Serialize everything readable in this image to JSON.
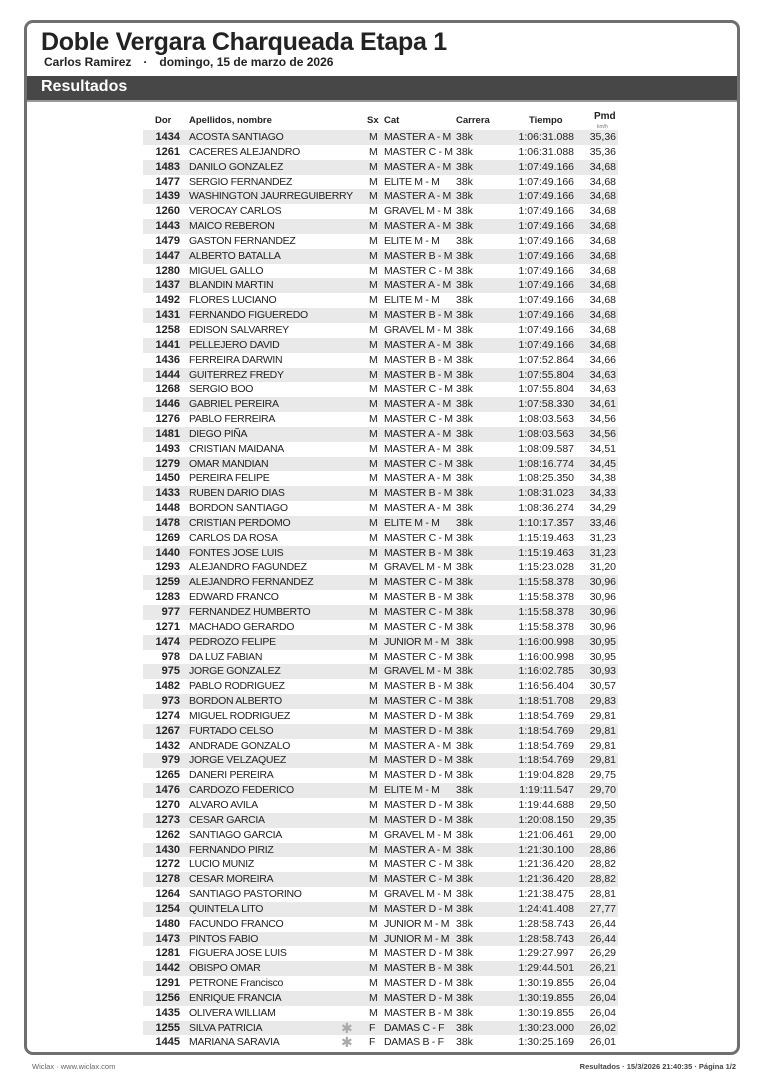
{
  "header": {
    "title": "Doble Vergara Charqueada Etapa 1",
    "organizer": "Carlos Ramirez",
    "separator": "·",
    "date": "domingo, 15 de marzo de 2026"
  },
  "section": {
    "title": "Resultados"
  },
  "table": {
    "columns": {
      "dor": "Dor",
      "name": "Apellidos, nombre",
      "sx": "Sx",
      "cat": "Cat",
      "carrera": "Carrera",
      "tiempo": "Tiempo",
      "pmd": "Pmd",
      "pmd_unit": "km/h"
    },
    "rows": [
      [
        "1434",
        "ACOSTA SANTIAGO",
        "M",
        "MASTER A - M",
        "38k",
        "1:06:31.088",
        "35,36",
        ""
      ],
      [
        "1261",
        "CACERES ALEJANDRO",
        "M",
        "MASTER C - M",
        "38k",
        "1:06:31.088",
        "35,36",
        ""
      ],
      [
        "1483",
        "DANILO GONZALEZ",
        "M",
        "MASTER A - M",
        "38k",
        "1:07:49.166",
        "34,68",
        ""
      ],
      [
        "1477",
        "SERGIO FERNANDEZ",
        "M",
        "ELITE M - M",
        "38k",
        "1:07:49.166",
        "34,68",
        ""
      ],
      [
        "1439",
        "WASHINGTON JAURREGUIBERRY",
        "M",
        "MASTER A - M",
        "38k",
        "1:07:49.166",
        "34,68",
        ""
      ],
      [
        "1260",
        "VEROCAY CARLOS",
        "M",
        "GRAVEL M - M",
        "38k",
        "1:07:49.166",
        "34,68",
        ""
      ],
      [
        "1443",
        "MAICO REBERON",
        "M",
        "MASTER A - M",
        "38k",
        "1:07:49.166",
        "34,68",
        ""
      ],
      [
        "1479",
        "GASTON FERNANDEZ",
        "M",
        "ELITE M - M",
        "38k",
        "1:07:49.166",
        "34,68",
        ""
      ],
      [
        "1447",
        "ALBERTO BATALLA",
        "M",
        "MASTER B - M",
        "38k",
        "1:07:49.166",
        "34,68",
        ""
      ],
      [
        "1280",
        "MIGUEL GALLO",
        "M",
        "MASTER C - M",
        "38k",
        "1:07:49.166",
        "34,68",
        ""
      ],
      [
        "1437",
        "BLANDIN MARTIN",
        "M",
        "MASTER A - M",
        "38k",
        "1:07:49.166",
        "34,68",
        ""
      ],
      [
        "1492",
        "FLORES LUCIANO",
        "M",
        "ELITE M - M",
        "38k",
        "1:07:49.166",
        "34,68",
        ""
      ],
      [
        "1431",
        "FERNANDO FIGUEREDO",
        "M",
        "MASTER B - M",
        "38k",
        "1:07:49.166",
        "34,68",
        ""
      ],
      [
        "1258",
        "EDISON SALVARREY",
        "M",
        "GRAVEL M - M",
        "38k",
        "1:07:49.166",
        "34,68",
        ""
      ],
      [
        "1441",
        "PELLEJERO DAVID",
        "M",
        "MASTER A - M",
        "38k",
        "1:07:49.166",
        "34,68",
        ""
      ],
      [
        "1436",
        "FERREIRA DARWIN",
        "M",
        "MASTER B - M",
        "38k",
        "1:07:52.864",
        "34,66",
        ""
      ],
      [
        "1444",
        "GUITERREZ FREDY",
        "M",
        "MASTER B - M",
        "38k",
        "1:07:55.804",
        "34,63",
        ""
      ],
      [
        "1268",
        "SERGIO BOO",
        "M",
        "MASTER C - M",
        "38k",
        "1:07:55.804",
        "34,63",
        ""
      ],
      [
        "1446",
        "GABRIEL PEREIRA",
        "M",
        "MASTER A - M",
        "38k",
        "1:07:58.330",
        "34,61",
        ""
      ],
      [
        "1276",
        "PABLO FERREIRA",
        "M",
        "MASTER C - M",
        "38k",
        "1:08:03.563",
        "34,56",
        ""
      ],
      [
        "1481",
        "DIEGO PIÑA",
        "M",
        "MASTER A - M",
        "38k",
        "1:08:03.563",
        "34,56",
        ""
      ],
      [
        "1493",
        "CRISTIAN MAIDANA",
        "M",
        "MASTER A - M",
        "38k",
        "1:08:09.587",
        "34,51",
        ""
      ],
      [
        "1279",
        "OMAR MANDIAN",
        "M",
        "MASTER C - M",
        "38k",
        "1:08:16.774",
        "34,45",
        ""
      ],
      [
        "1450",
        "PEREIRA FELIPE",
        "M",
        "MASTER A - M",
        "38k",
        "1:08:25.350",
        "34,38",
        ""
      ],
      [
        "1433",
        "RUBEN DARIO DIAS",
        "M",
        "MASTER B - M",
        "38k",
        "1:08:31.023",
        "34,33",
        ""
      ],
      [
        "1448",
        "BORDON SANTIAGO",
        "M",
        "MASTER A - M",
        "38k",
        "1:08:36.274",
        "34,29",
        ""
      ],
      [
        "1478",
        "CRISTIAN PERDOMO",
        "M",
        "ELITE M - M",
        "38k",
        "1:10:17.357",
        "33,46",
        ""
      ],
      [
        "1269",
        "CARLOS DA ROSA",
        "M",
        "MASTER C - M",
        "38k",
        "1:15:19.463",
        "31,23",
        ""
      ],
      [
        "1440",
        "FONTES JOSE LUIS",
        "M",
        "MASTER B - M",
        "38k",
        "1:15:19.463",
        "31,23",
        ""
      ],
      [
        "1293",
        "ALEJANDRO FAGUNDEZ",
        "M",
        "GRAVEL M - M",
        "38k",
        "1:15:23.028",
        "31,20",
        ""
      ],
      [
        "1259",
        "ALEJANDRO FERNANDEZ",
        "M",
        "MASTER C - M",
        "38k",
        "1:15:58.378",
        "30,96",
        ""
      ],
      [
        "1283",
        "EDWARD FRANCO",
        "M",
        "MASTER B - M",
        "38k",
        "1:15:58.378",
        "30,96",
        ""
      ],
      [
        "977",
        "FERNANDEZ HUMBERTO",
        "M",
        "MASTER C - M",
        "38k",
        "1:15:58.378",
        "30,96",
        ""
      ],
      [
        "1271",
        "MACHADO GERARDO",
        "M",
        "MASTER C - M",
        "38k",
        "1:15:58.378",
        "30,96",
        ""
      ],
      [
        "1474",
        "PEDROZO FELIPE",
        "M",
        "JUNIOR M - M",
        "38k",
        "1:16:00.998",
        "30,95",
        ""
      ],
      [
        "978",
        "DA LUZ FABIAN",
        "M",
        "MASTER C - M",
        "38k",
        "1:16:00.998",
        "30,95",
        ""
      ],
      [
        "975",
        "JORGE GONZALEZ",
        "M",
        "GRAVEL M - M",
        "38k",
        "1:16:02.785",
        "30,93",
        ""
      ],
      [
        "1482",
        "PABLO RODRIGUEZ",
        "M",
        "MASTER B - M",
        "38k",
        "1:16:56.404",
        "30,57",
        ""
      ],
      [
        "973",
        "BORDON ALBERTO",
        "M",
        "MASTER C - M",
        "38k",
        "1:18:51.708",
        "29,83",
        ""
      ],
      [
        "1274",
        "MIGUEL RODRIGUEZ",
        "M",
        "MASTER D - M",
        "38k",
        "1:18:54.769",
        "29,81",
        ""
      ],
      [
        "1267",
        "FURTADO CELSO",
        "M",
        "MASTER D - M",
        "38k",
        "1:18:54.769",
        "29,81",
        ""
      ],
      [
        "1432",
        "ANDRADE GONZALO",
        "M",
        "MASTER A - M",
        "38k",
        "1:18:54.769",
        "29,81",
        ""
      ],
      [
        "979",
        "JORGE VELZAQUEZ",
        "M",
        "MASTER D - M",
        "38k",
        "1:18:54.769",
        "29,81",
        ""
      ],
      [
        "1265",
        "DANERI PEREIRA",
        "M",
        "MASTER D - M",
        "38k",
        "1:19:04.828",
        "29,75",
        ""
      ],
      [
        "1476",
        "CARDOZO FEDERICO",
        "M",
        "ELITE M - M",
        "38k",
        "1:19:11.547",
        "29,70",
        ""
      ],
      [
        "1270",
        "ALVARO AVILA",
        "M",
        "MASTER D - M",
        "38k",
        "1:19:44.688",
        "29,50",
        ""
      ],
      [
        "1273",
        "CESAR GARCIA",
        "M",
        "MASTER D - M",
        "38k",
        "1:20:08.150",
        "29,35",
        ""
      ],
      [
        "1262",
        "SANTIAGO GARCIA",
        "M",
        "GRAVEL M - M",
        "38k",
        "1:21:06.461",
        "29,00",
        ""
      ],
      [
        "1430",
        "FERNANDO PIRIZ",
        "M",
        "MASTER A - M",
        "38k",
        "1:21:30.100",
        "28,86",
        ""
      ],
      [
        "1272",
        "LUCIO MUNIZ",
        "M",
        "MASTER C - M",
        "38k",
        "1:21:36.420",
        "28,82",
        ""
      ],
      [
        "1278",
        "CESAR MOREIRA",
        "M",
        "MASTER C - M",
        "38k",
        "1:21:36.420",
        "28,82",
        ""
      ],
      [
        "1264",
        "SANTIAGO PASTORINO",
        "M",
        "GRAVEL M - M",
        "38k",
        "1:21:38.475",
        "28,81",
        ""
      ],
      [
        "1254",
        "QUINTELA LITO",
        "M",
        "MASTER D - M",
        "38k",
        "1:24:41.408",
        "27,77",
        ""
      ],
      [
        "1480",
        "FACUNDO FRANCO",
        "M",
        "JUNIOR M - M",
        "38k",
        "1:28:58.743",
        "26,44",
        ""
      ],
      [
        "1473",
        "PINTOS FABIO",
        "M",
        "JUNIOR M - M",
        "38k",
        "1:28:58.743",
        "26,44",
        ""
      ],
      [
        "1281",
        "FIGUERA JOSE LUIS",
        "M",
        "MASTER D - M",
        "38k",
        "1:29:27.997",
        "26,29",
        ""
      ],
      [
        "1442",
        "OBISPO OMAR",
        "M",
        "MASTER B - M",
        "38k",
        "1:29:44.501",
        "26,21",
        ""
      ],
      [
        "1291",
        "PETRONE Francisco",
        "M",
        "MASTER D - M",
        "38k",
        "1:30:19.855",
        "26,04",
        ""
      ],
      [
        "1256",
        "ENRIQUE FRANCIA",
        "M",
        "MASTER D - M",
        "38k",
        "1:30:19.855",
        "26,04",
        ""
      ],
      [
        "1435",
        "OLIVERA WILLIAM",
        "M",
        "MASTER B - M",
        "38k",
        "1:30:19.855",
        "26,04",
        ""
      ],
      [
        "1255",
        "SILVA PATRICIA",
        "F",
        "DAMAS C - F",
        "38k",
        "1:30:23.000",
        "26,02",
        "asterisk-icon"
      ],
      [
        "1445",
        "MARIANA SARAVIA",
        "F",
        "DAMAS B - F",
        "38k",
        "1:30:25.169",
        "26,01",
        "asterisk-icon"
      ]
    ]
  },
  "footer": {
    "left": "Wiclax · www.wiclax.com",
    "right": "Resultados · 15/3/2026 21:40:35 · Página 1/2"
  }
}
